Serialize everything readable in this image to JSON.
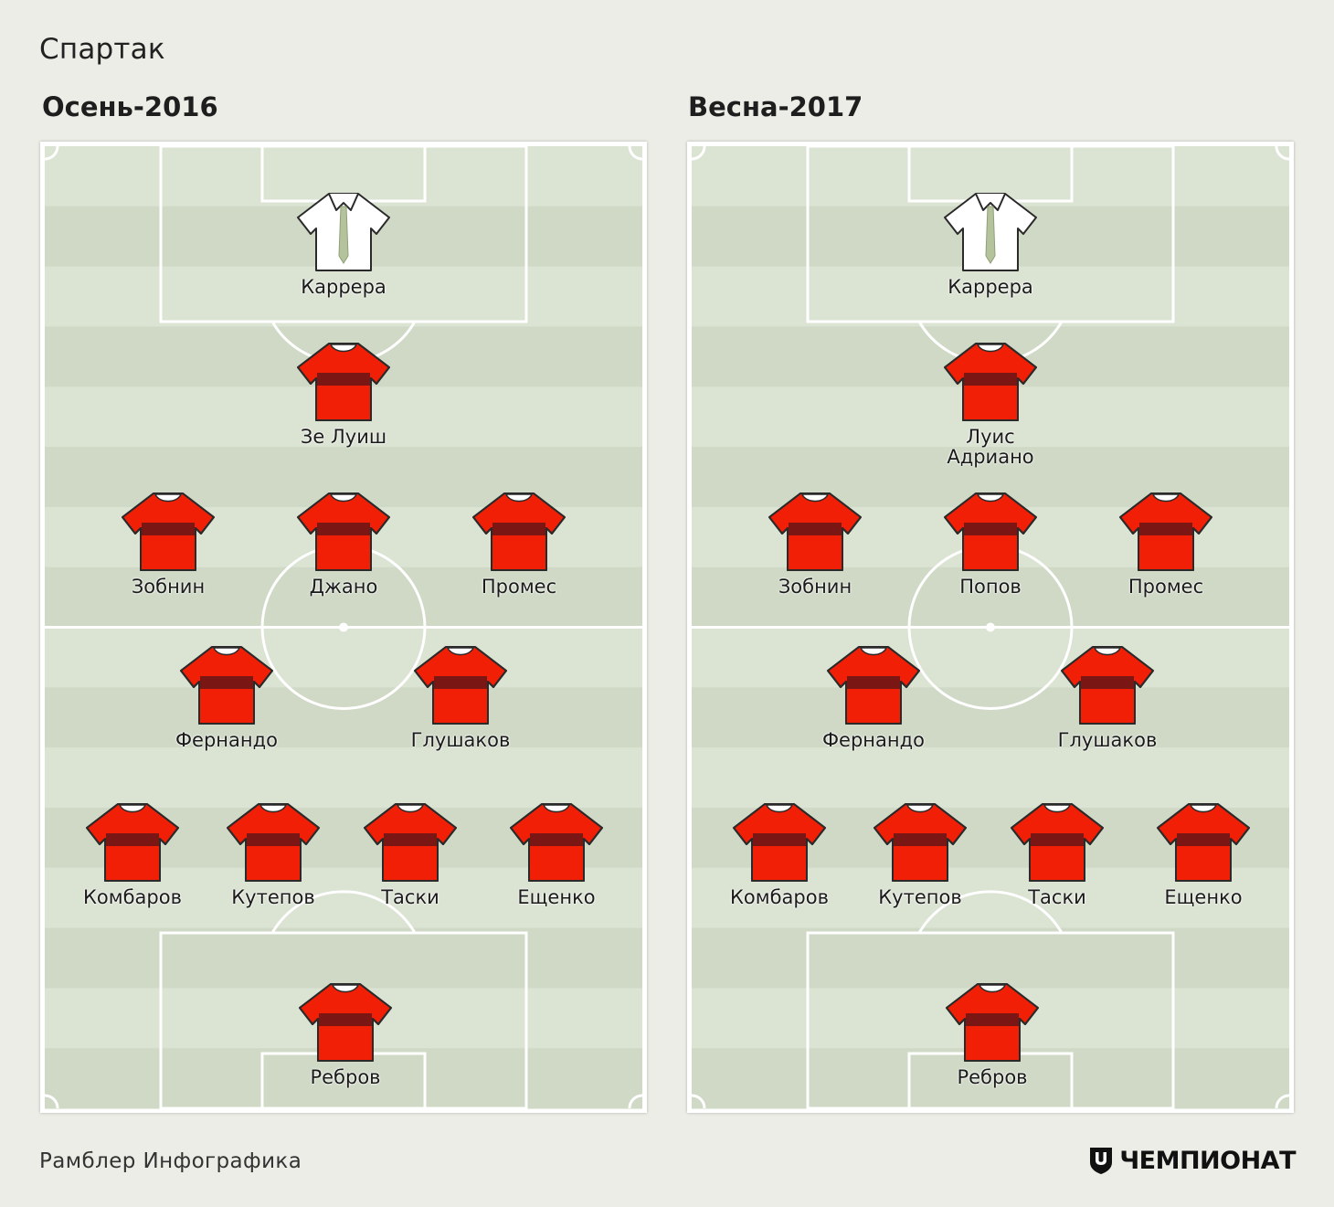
{
  "title": "Спартак",
  "footer": {
    "source": "Рамблер Инфографика",
    "brand": "ЧЕМПИОНАТ"
  },
  "colors": {
    "home_kit": "#f01f05",
    "home_kit_band": "#7a1714",
    "keeper_kit": "#ffffff",
    "pitch_light": "#dbe3d3",
    "pitch_dark": "#cfd9c6"
  },
  "lineups": [
    {
      "season": "Осень-2016",
      "players": [
        {
          "name": "Каррера",
          "kit": "keeper"
        },
        {
          "name": "Зе Луиш",
          "kit": "home"
        },
        {
          "name": "Зобнин",
          "kit": "home"
        },
        {
          "name": "Джано",
          "kit": "home"
        },
        {
          "name": "Промес",
          "kit": "home"
        },
        {
          "name": "Фернандо",
          "kit": "home"
        },
        {
          "name": "Глушаков",
          "kit": "home"
        },
        {
          "name": "Комбаров",
          "kit": "home"
        },
        {
          "name": "Кутепов",
          "kit": "home"
        },
        {
          "name": "Таски",
          "kit": "home"
        },
        {
          "name": "Ещенко",
          "kit": "home"
        },
        {
          "name": "Ребров",
          "kit": "home"
        }
      ]
    },
    {
      "season": "Весна-2017",
      "players": [
        {
          "name": "Каррера",
          "kit": "keeper"
        },
        {
          "name": "Луис Адриано",
          "kit": "home"
        },
        {
          "name": "Зобнин",
          "kit": "home"
        },
        {
          "name": "Попов",
          "kit": "home"
        },
        {
          "name": "Промес",
          "kit": "home"
        },
        {
          "name": "Фернандо",
          "kit": "home"
        },
        {
          "name": "Глушаков",
          "kit": "home"
        },
        {
          "name": "Комбаров",
          "kit": "home"
        },
        {
          "name": "Кутепов",
          "kit": "home"
        },
        {
          "name": "Таски",
          "kit": "home"
        },
        {
          "name": "Ещенко",
          "kit": "home"
        },
        {
          "name": "Ребров",
          "kit": "home"
        }
      ]
    }
  ]
}
